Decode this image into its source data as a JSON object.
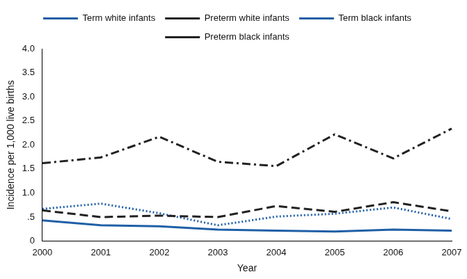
{
  "chart_data": {
    "type": "line",
    "categories": [
      "2000",
      "2001",
      "2002",
      "2003",
      "2004",
      "2005",
      "2006",
      "2007"
    ],
    "x_label": "Year",
    "y_label": "Incidence per 1,000 live births",
    "ylim": [
      0,
      4
    ],
    "yticks": [
      0,
      {
        "value": 0.5,
        "label": ".5"
      },
      {
        "value": 1,
        "label": "1.0"
      },
      {
        "value": 1.5,
        "label": "1.5"
      },
      {
        "value": 2,
        "label": "2.0"
      },
      {
        "value": 2.5,
        "label": "2.5"
      },
      {
        "value": 3,
        "label": "3.0"
      },
      {
        "value": 3.5,
        "label": "3.5"
      },
      {
        "value": 4,
        "label": "4.0"
      }
    ],
    "grid": false,
    "legend": "top",
    "series": [
      {
        "name": "Term white infants",
        "color": "#1f5fa6",
        "line_style": "solid",
        "marker": "none",
        "values": [
          0.43,
          0.33,
          0.31,
          0.24,
          0.22,
          0.2,
          0.24,
          0.22
        ]
      },
      {
        "name": "Preterm white infants",
        "color": "#222222",
        "line_style": "dashed",
        "marker": "none",
        "values": [
          0.64,
          0.5,
          0.53,
          0.5,
          0.73,
          0.61,
          0.81,
          0.62
        ]
      },
      {
        "name": "Term black infants",
        "color": "#1f5fa6",
        "line_style": "dotted",
        "marker": "none",
        "values": [
          0.67,
          0.78,
          0.58,
          0.33,
          0.51,
          0.57,
          0.7,
          0.46
        ]
      },
      {
        "name": "Preterm black infants",
        "color": "#222222",
        "line_style": "dashdot",
        "marker": "none",
        "values": [
          1.62,
          1.74,
          2.17,
          1.65,
          1.56,
          2.22,
          1.72,
          2.34
        ]
      }
    ]
  }
}
